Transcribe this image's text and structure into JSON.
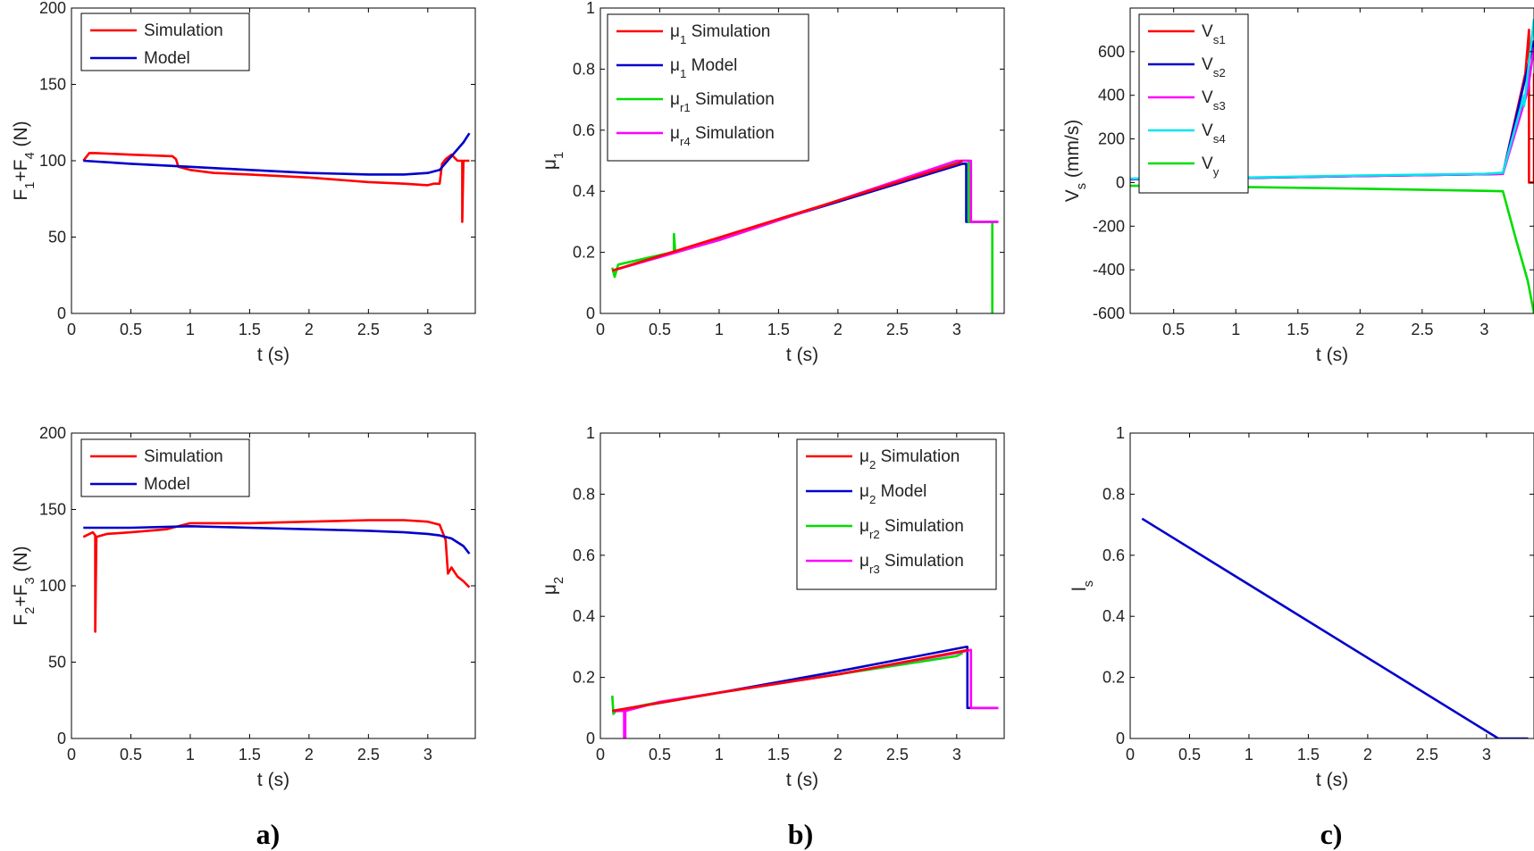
{
  "figure_labels": [
    "a)",
    "b)",
    "c)"
  ],
  "chart_data": [
    {
      "id": "a1",
      "type": "line",
      "xlabel": "t (s)",
      "ylabel_main": "F",
      "ylabel_parts": [
        [
          "F",
          ""
        ],
        [
          "1",
          "sub"
        ],
        [
          "+F",
          ""
        ],
        [
          "4",
          "sub"
        ],
        [
          " (N)",
          ""
        ]
      ],
      "xlim": [
        0,
        3.4
      ],
      "ylim": [
        0,
        200
      ],
      "xticks": [
        "0",
        "0.5",
        "1",
        "1.5",
        "2",
        "2.5",
        "3"
      ],
      "xtick_values": [
        0,
        0.5,
        1,
        1.5,
        2,
        2.5,
        3
      ],
      "yticks": [
        "0",
        "50",
        "100",
        "150",
        "200"
      ],
      "ytick_values": [
        0,
        50,
        100,
        150,
        200
      ],
      "legend": "top-left",
      "series": [
        {
          "name": "Simulation",
          "color": "#ff0000",
          "x": [
            0.1,
            0.15,
            0.2,
            0.5,
            0.85,
            0.88,
            0.9,
            1.0,
            1.2,
            1.5,
            2.0,
            2.5,
            2.8,
            3.0,
            3.05,
            3.1,
            3.12,
            3.15,
            3.2,
            3.25,
            3.28,
            3.29,
            3.29,
            3.3,
            3.35
          ],
          "y": [
            100,
            105,
            105,
            104,
            103,
            101,
            96,
            94,
            92,
            91,
            89,
            86,
            85,
            84,
            85,
            85,
            98,
            101,
            104,
            100,
            100,
            100,
            60,
            100,
            100
          ]
        },
        {
          "name": "Model",
          "color": "#0000cc",
          "x": [
            0.1,
            0.5,
            1.0,
            1.5,
            2.0,
            2.5,
            2.8,
            3.0,
            3.1,
            3.2,
            3.3,
            3.35
          ],
          "y": [
            100,
            98,
            96,
            94,
            92,
            91,
            91,
            92,
            94,
            103,
            112,
            118
          ]
        }
      ]
    },
    {
      "id": "a2",
      "type": "line",
      "xlabel": "t (s)",
      "ylabel_main": "F",
      "ylabel_parts": [
        [
          "F",
          ""
        ],
        [
          "2",
          "sub"
        ],
        [
          "+F",
          ""
        ],
        [
          "3",
          "sub"
        ],
        [
          " (N)",
          ""
        ]
      ],
      "xlim": [
        0,
        3.4
      ],
      "ylim": [
        0,
        200
      ],
      "xticks": [
        "0",
        "0.5",
        "1",
        "1.5",
        "2",
        "2.5",
        "3"
      ],
      "xtick_values": [
        0,
        0.5,
        1,
        1.5,
        2,
        2.5,
        3
      ],
      "yticks": [
        "0",
        "50",
        "100",
        "150",
        "200"
      ],
      "ytick_values": [
        0,
        50,
        100,
        150,
        200
      ],
      "legend": "top-left",
      "series": [
        {
          "name": "Simulation",
          "color": "#ff0000",
          "x": [
            0.1,
            0.18,
            0.2,
            0.2,
            0.21,
            0.3,
            0.5,
            0.8,
            0.9,
            1.0,
            1.5,
            2.0,
            2.5,
            2.8,
            3.0,
            3.1,
            3.15,
            3.17,
            3.2,
            3.25,
            3.3,
            3.35
          ],
          "y": [
            132,
            135,
            133,
            70,
            132,
            134,
            135,
            137,
            139,
            141,
            141,
            142,
            143,
            143,
            142,
            140,
            130,
            108,
            112,
            106,
            103,
            99
          ]
        },
        {
          "name": "Model",
          "color": "#0000cc",
          "x": [
            0.1,
            0.5,
            1.0,
            1.5,
            2.0,
            2.5,
            2.8,
            3.0,
            3.1,
            3.2,
            3.3,
            3.35
          ],
          "y": [
            138,
            138,
            139,
            138,
            137,
            136,
            135,
            134,
            133,
            131,
            126,
            121
          ]
        }
      ]
    },
    {
      "id": "b1",
      "type": "line",
      "xlabel": "t (s)",
      "ylabel_main": "μ",
      "ylabel_parts": [
        [
          "μ",
          ""
        ],
        [
          "1",
          "sub"
        ]
      ],
      "xlim": [
        0,
        3.4
      ],
      "ylim": [
        0,
        1
      ],
      "xticks": [
        "0",
        "0.5",
        "1",
        "1.5",
        "2",
        "2.5",
        "3"
      ],
      "xtick_values": [
        0,
        0.5,
        1,
        1.5,
        2,
        2.5,
        3
      ],
      "yticks": [
        "0",
        "0.2",
        "0.4",
        "0.6",
        "0.8",
        "1"
      ],
      "ytick_values": [
        0,
        0.2,
        0.4,
        0.6,
        0.8,
        1
      ],
      "legend": "top-left",
      "legend_entries": [
        {
          "parts": [
            [
              "μ",
              ""
            ],
            [
              "1",
              "sub"
            ],
            [
              " Simulation",
              ""
            ]
          ],
          "color": "#ff0000"
        },
        {
          "parts": [
            [
              "μ",
              ""
            ],
            [
              "1",
              "sub"
            ],
            [
              " Model",
              ""
            ]
          ],
          "color": "#0000cc"
        },
        {
          "parts": [
            [
              "μ",
              ""
            ],
            [
              "r1",
              "sub"
            ],
            [
              " Simulation",
              ""
            ]
          ],
          "color": "#00dd00"
        },
        {
          "parts": [
            [
              "μ",
              ""
            ],
            [
              "r4",
              "sub"
            ],
            [
              " Simulation",
              ""
            ]
          ],
          "color": "#ff00ff"
        }
      ],
      "series": [
        {
          "name": "μ1 Model",
          "color": "#0000cc",
          "x": [
            0.1,
            3.05,
            3.08,
            3.08,
            3.35
          ],
          "y": [
            0.14,
            0.49,
            0.49,
            0.3,
            0.3
          ]
        },
        {
          "name": "μr1 Simulation",
          "color": "#00dd00",
          "x": [
            0.1,
            0.12,
            0.15,
            0.6,
            0.62,
            0.62,
            0.63,
            1.0,
            2.0,
            3.05,
            3.1,
            3.1,
            3.3,
            3.3,
            3.31
          ],
          "y": [
            0.15,
            0.12,
            0.16,
            0.2,
            0.2,
            0.26,
            0.2,
            0.24,
            0.37,
            0.5,
            0.5,
            0.3,
            0.3,
            0.0,
            0.0
          ]
        },
        {
          "name": "μr4 Simulation",
          "color": "#ff00ff",
          "x": [
            0.1,
            1.0,
            2.0,
            3.0,
            3.1,
            3.12,
            3.12,
            3.35
          ],
          "y": [
            0.14,
            0.24,
            0.37,
            0.5,
            0.5,
            0.5,
            0.3,
            0.3
          ]
        },
        {
          "name": "μ1 Simulation",
          "color": "#ff0000",
          "x": [
            0.1,
            3.0,
            3.05
          ],
          "y": [
            0.14,
            0.49,
            0.5
          ]
        }
      ]
    },
    {
      "id": "b2",
      "type": "line",
      "xlabel": "t (s)",
      "ylabel_main": "μ",
      "ylabel_parts": [
        [
          "μ",
          ""
        ],
        [
          "2",
          "sub"
        ]
      ],
      "xlim": [
        0,
        3.4
      ],
      "ylim": [
        0,
        1
      ],
      "xticks": [
        "0",
        "0.5",
        "1",
        "1.5",
        "2",
        "2.5",
        "3"
      ],
      "xtick_values": [
        0,
        0.5,
        1,
        1.5,
        2,
        2.5,
        3
      ],
      "yticks": [
        "0",
        "0.2",
        "0.4",
        "0.6",
        "0.8",
        "1"
      ],
      "ytick_values": [
        0,
        0.2,
        0.4,
        0.6,
        0.8,
        1
      ],
      "legend": "top-right",
      "legend_entries": [
        {
          "parts": [
            [
              "μ",
              ""
            ],
            [
              "2",
              "sub"
            ],
            [
              " Simulation",
              ""
            ]
          ],
          "color": "#ff0000"
        },
        {
          "parts": [
            [
              "μ",
              ""
            ],
            [
              "2",
              "sub"
            ],
            [
              " Model",
              ""
            ]
          ],
          "color": "#0000cc"
        },
        {
          "parts": [
            [
              "μ",
              ""
            ],
            [
              "r2",
              "sub"
            ],
            [
              " Simulation",
              ""
            ]
          ],
          "color": "#00dd00"
        },
        {
          "parts": [
            [
              "μ",
              ""
            ],
            [
              "r3",
              "sub"
            ],
            [
              " Simulation",
              ""
            ]
          ],
          "color": "#ff00ff"
        }
      ],
      "series": [
        {
          "name": "μr2 Simulation",
          "color": "#00dd00",
          "x": [
            0.1,
            0.11,
            0.13,
            0.5,
            1.0,
            2.0,
            3.0,
            3.05
          ],
          "y": [
            0.14,
            0.08,
            0.09,
            0.12,
            0.15,
            0.21,
            0.27,
            0.28
          ]
        },
        {
          "name": "μ2 Model",
          "color": "#0000cc",
          "x": [
            0.1,
            1.0,
            2.0,
            3.08,
            3.09,
            3.09,
            3.35
          ],
          "y": [
            0.09,
            0.15,
            0.22,
            0.3,
            0.3,
            0.1,
            0.1
          ]
        },
        {
          "name": "μr3 Simulation",
          "color": "#ff00ff",
          "x": [
            0.1,
            0.2,
            0.2,
            0.21,
            0.21,
            0.5,
            1.0,
            2.0,
            3.0,
            3.12,
            3.12,
            3.35
          ],
          "y": [
            0.09,
            0.09,
            0.0,
            0.0,
            0.09,
            0.12,
            0.15,
            0.21,
            0.28,
            0.29,
            0.1,
            0.1
          ]
        },
        {
          "name": "μ2 Simulation",
          "color": "#ff0000",
          "x": [
            0.1,
            1.0,
            2.0,
            3.1
          ],
          "y": [
            0.09,
            0.15,
            0.21,
            0.29
          ]
        }
      ]
    },
    {
      "id": "c1",
      "type": "line",
      "xlabel": "t (s)",
      "ylabel_main": "V",
      "ylabel_parts": [
        [
          "V",
          ""
        ],
        [
          "s",
          "sub"
        ],
        [
          " (mm/s)",
          ""
        ]
      ],
      "xlim": [
        0.15,
        3.4
      ],
      "ylim": [
        -600,
        800
      ],
      "xticks": [
        "0.5",
        "1",
        "1.5",
        "2",
        "2.5",
        "3"
      ],
      "xtick_values": [
        0.5,
        1,
        1.5,
        2,
        2.5,
        3
      ],
      "yticks": [
        "-600",
        "-400",
        "-200",
        "0",
        "200",
        "400",
        "600"
      ],
      "ytick_values": [
        -600,
        -400,
        -200,
        0,
        200,
        400,
        600
      ],
      "legend": "top-left",
      "legend_entries": [
        {
          "parts": [
            [
              "V",
              ""
            ],
            [
              "s1",
              "sub"
            ]
          ],
          "color": "#ff0000"
        },
        {
          "parts": [
            [
              "V",
              ""
            ],
            [
              "s2",
              "sub"
            ]
          ],
          "color": "#0000cc"
        },
        {
          "parts": [
            [
              "V",
              ""
            ],
            [
              "s3",
              "sub"
            ]
          ],
          "color": "#ff00ff"
        },
        {
          "parts": [
            [
              "V",
              ""
            ],
            [
              "s4",
              "sub"
            ]
          ],
          "color": "#00e5ee"
        },
        {
          "parts": [
            [
              "V",
              ""
            ],
            [
              "y",
              "sub"
            ]
          ],
          "color": "#00dd00"
        }
      ],
      "series": [
        {
          "name": "Vy",
          "color": "#00dd00",
          "x": [
            0.15,
            0.3,
            1.0,
            2.0,
            3.0,
            3.15,
            3.25,
            3.35,
            3.4
          ],
          "y": [
            -15,
            -15,
            -20,
            -28,
            -38,
            -40,
            -250,
            -450,
            -600
          ]
        },
        {
          "name": "Vs1",
          "color": "#ff0000",
          "x": [
            0.15,
            1.0,
            2.0,
            3.0,
            3.15,
            3.33,
            3.36,
            3.36,
            3.4,
            3.4
          ],
          "y": [
            15,
            20,
            30,
            38,
            40,
            500,
            700,
            0,
            0,
            500
          ]
        },
        {
          "name": "Vs2",
          "color": "#0000cc",
          "x": [
            0.15,
            1.0,
            2.0,
            3.0,
            3.15,
            3.4
          ],
          "y": [
            15,
            20,
            30,
            38,
            40,
            650
          ]
        },
        {
          "name": "Vs3",
          "color": "#ff00ff",
          "x": [
            0.15,
            1.0,
            2.0,
            3.0,
            3.15,
            3.35,
            3.4
          ],
          "y": [
            16,
            21,
            30,
            38,
            40,
            420,
            620
          ]
        },
        {
          "name": "Vs4",
          "color": "#00e5ee",
          "x": [
            0.15,
            1.0,
            2.0,
            3.0,
            3.15,
            3.32,
            3.32,
            3.4
          ],
          "y": [
            18,
            22,
            32,
            40,
            45,
            400,
            350,
            750
          ]
        }
      ]
    },
    {
      "id": "c2",
      "type": "line",
      "xlabel": "t (s)",
      "ylabel_main": "l",
      "ylabel_parts": [
        [
          "l",
          ""
        ],
        [
          "s",
          "sub"
        ]
      ],
      "xlim": [
        0,
        3.4
      ],
      "ylim": [
        0,
        1
      ],
      "xticks": [
        "0",
        "0.5",
        "1",
        "1.5",
        "2",
        "2.5",
        "3"
      ],
      "xtick_values": [
        0,
        0.5,
        1,
        1.5,
        2,
        2.5,
        3
      ],
      "yticks": [
        "0",
        "0.2",
        "0.4",
        "0.6",
        "0.8",
        "1"
      ],
      "ytick_values": [
        0,
        0.2,
        0.4,
        0.6,
        0.8,
        1
      ],
      "series": [
        {
          "name": "ls",
          "color": "#0000cc",
          "x": [
            0.1,
            3.1,
            3.35
          ],
          "y": [
            0.72,
            0.0,
            0.0
          ]
        }
      ]
    }
  ]
}
